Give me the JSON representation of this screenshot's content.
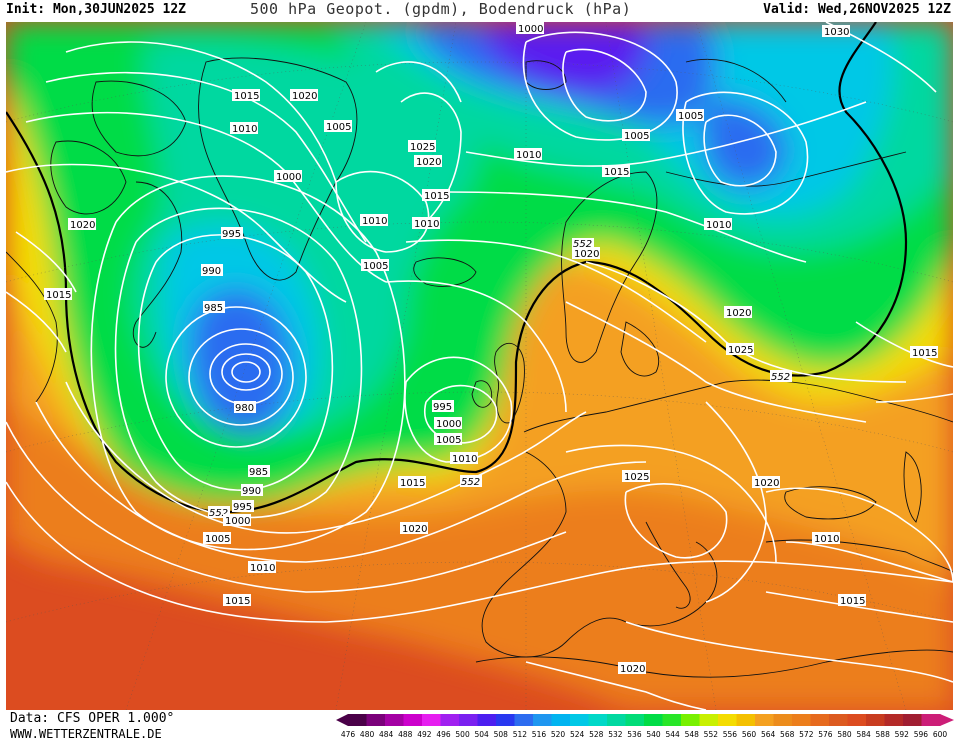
{
  "header": {
    "init_label": "Init: Mon,30JUN2025 12Z",
    "title": "500 hPa Geopot. (gpdm), Bodendruck (hPa)",
    "valid_label": "Valid: Wed,26NOV2025 12Z"
  },
  "footer": {
    "data_label": "Data: CFS OPER 1.000°",
    "site_label": "WWW.WETTERZENTRALE.DE"
  },
  "colors": {
    "ocean_red": "#dc4c20",
    "deep_orange": "#ec7e1c",
    "orange": "#f4a020",
    "yellow": "#f4dc00",
    "green": "#00dc46",
    "teal": "#00d8a0",
    "cyan": "#00c8e6",
    "blue": "#2c6cf0",
    "violet": "#5a1ef0"
  },
  "colorbar": {
    "ticks": [
      "476",
      "480",
      "484",
      "488",
      "492",
      "496",
      "500",
      "504",
      "508",
      "512",
      "516",
      "520",
      "524",
      "528",
      "532",
      "536",
      "540",
      "544",
      "548",
      "552",
      "556",
      "560",
      "564",
      "568",
      "572",
      "576",
      "580",
      "584",
      "588",
      "592",
      "596",
      "600"
    ],
    "colors": [
      "#4a0048",
      "#7a007a",
      "#a400a4",
      "#cc00cc",
      "#e61ef0",
      "#a020f0",
      "#7a20f0",
      "#4c1ef0",
      "#2838f0",
      "#2c6cf0",
      "#1e96f0",
      "#00b4f0",
      "#00c8e6",
      "#00d8c8",
      "#00d8a0",
      "#00dc78",
      "#00dc46",
      "#28e628",
      "#78f000",
      "#c8f000",
      "#f4dc00",
      "#f4c000",
      "#f4a020",
      "#ec8c1c",
      "#ec7e1c",
      "#e66a1e",
      "#dc5a20",
      "#dc4c20",
      "#c83c20",
      "#b42a28",
      "#a01e32",
      "#cc1e78"
    ]
  },
  "map_annotations": {
    "geopot_552": "552",
    "isobars": [
      "1000",
      "1030",
      "1015",
      "1020",
      "1010",
      "1005",
      "1025",
      "1020",
      "1015",
      "1005",
      "1010",
      "1010",
      "1020",
      "1000",
      "1015",
      "995",
      "990",
      "985",
      "980",
      "1005",
      "1020",
      "1020",
      "1025",
      "1015",
      "995",
      "1000",
      "1005",
      "1010",
      "1015",
      "552",
      "985",
      "990",
      "995",
      "552",
      "1000",
      "1005",
      "1010",
      "1020",
      "1015",
      "1025",
      "1020",
      "1010",
      "1015",
      "1020",
      "1015",
      "552",
      "1010",
      "1005",
      "1010"
    ]
  }
}
